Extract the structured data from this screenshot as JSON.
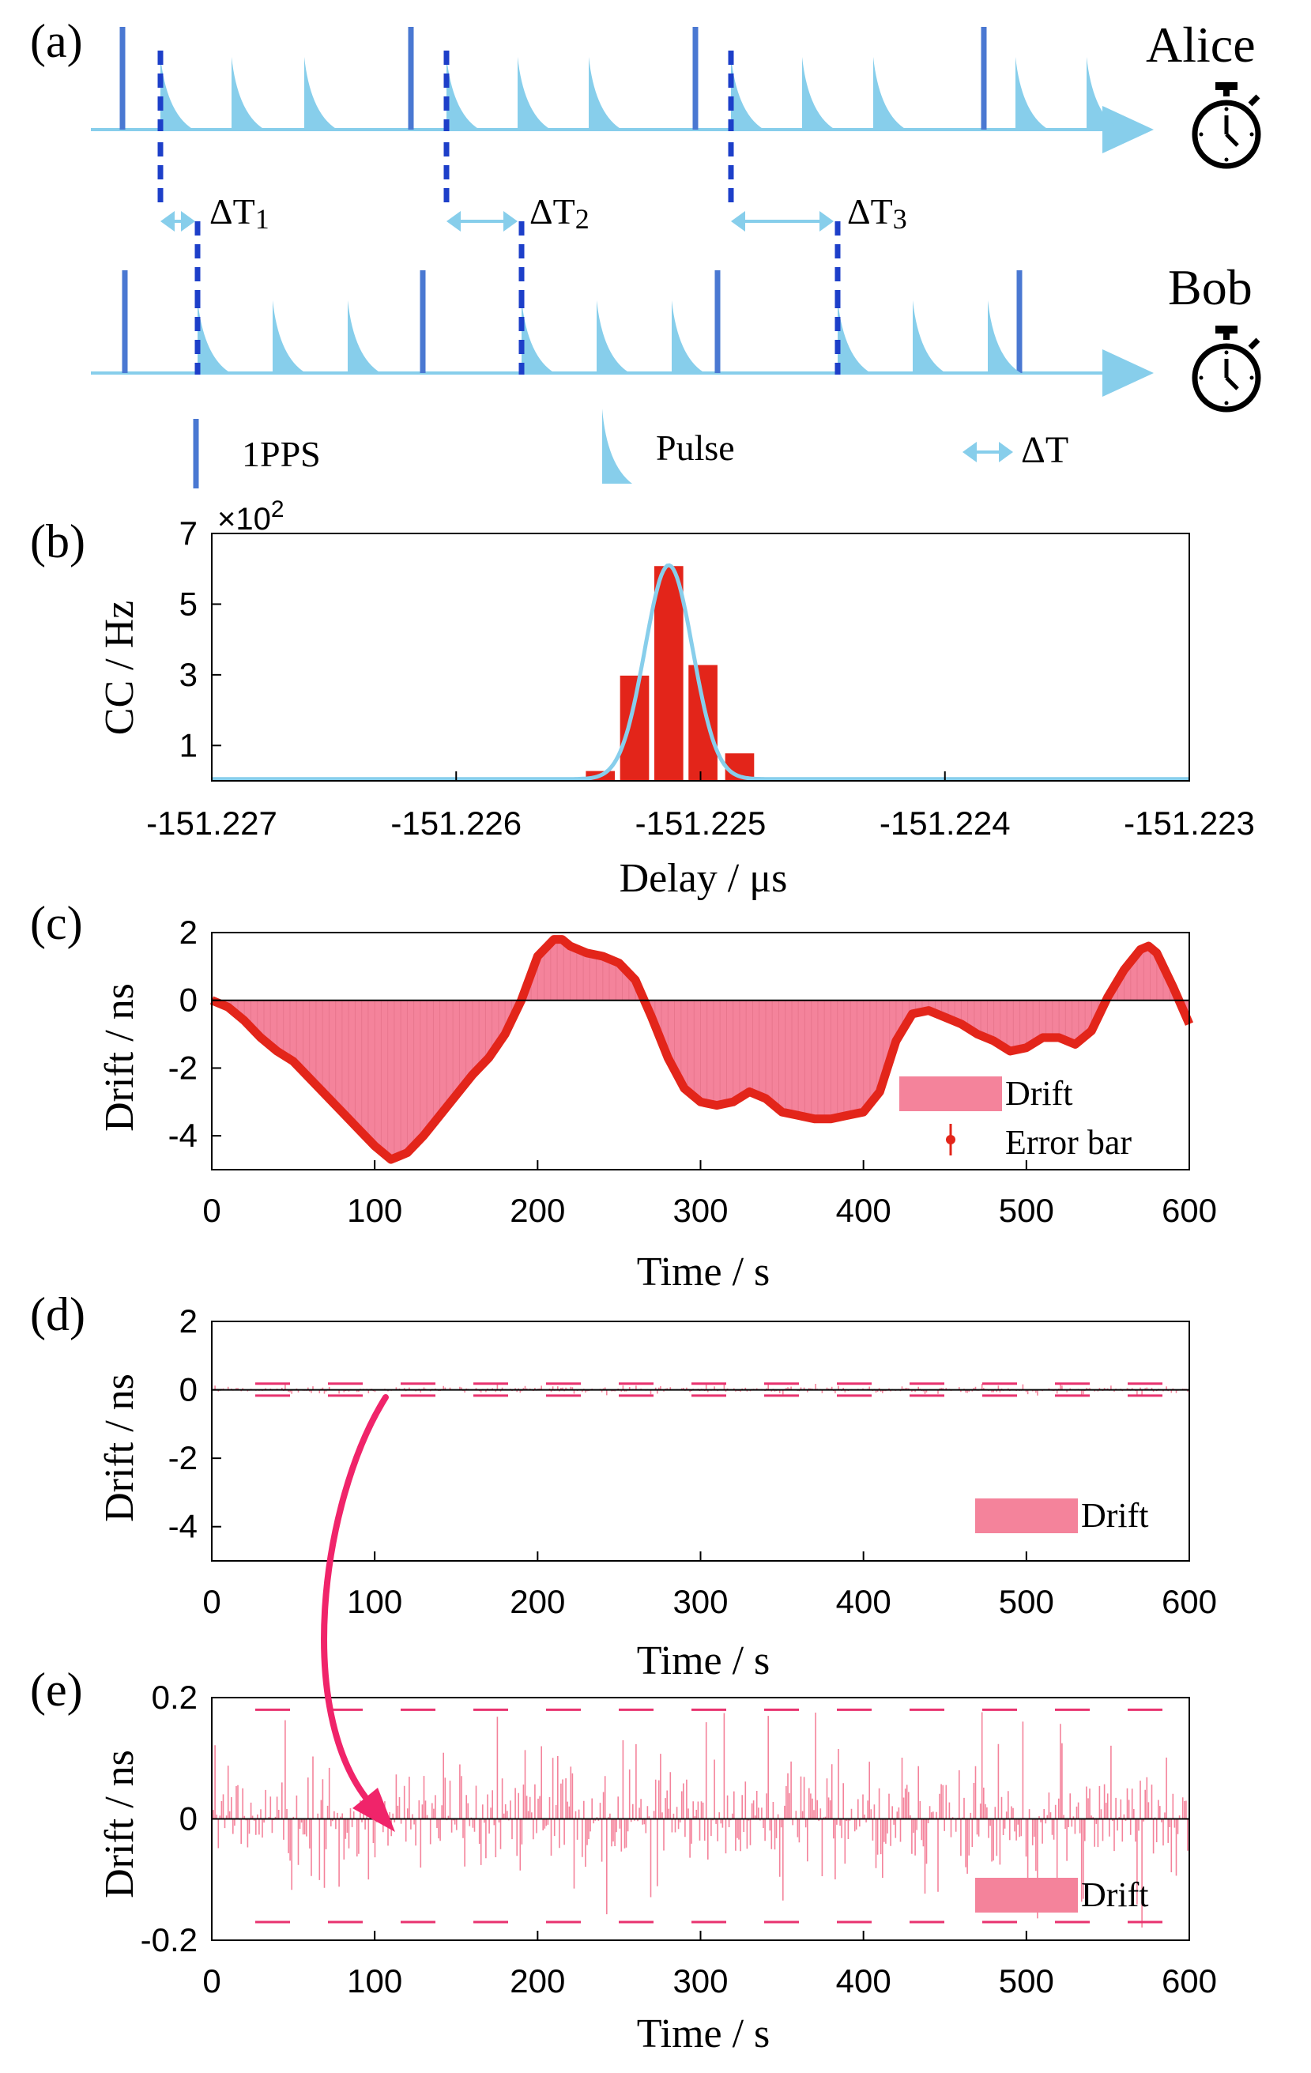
{
  "panel_a": {
    "label": "(a)",
    "alice_label": "Alice",
    "bob_label": "Bob",
    "delta_labels": [
      {
        "base": "ΔT",
        "sub": "1"
      },
      {
        "base": "ΔT",
        "sub": "2"
      },
      {
        "base": "ΔT",
        "sub": "3"
      }
    ],
    "legend": {
      "pps": "1PPS",
      "pulse": "Pulse",
      "delta": "ΔT"
    },
    "colors": {
      "arrow": "#87ceeb",
      "pulse": "#87ceeb",
      "pps": "#4a78d2",
      "dash": "#1d3fc9"
    },
    "icons": [
      "stopwatch-icon",
      "stopwatch-icon"
    ]
  },
  "chart_data": [
    {
      "panel": "(b)",
      "type": "bar",
      "ylabel": "CC / Hz",
      "xlabel": "Delay / μs",
      "y_multiplier": "×10",
      "y_multiplier_exp": "2",
      "xlim": [
        -151.227,
        -151.223
      ],
      "ylim": [
        0,
        7
      ],
      "xticks": [
        -151.227,
        -151.226,
        -151.225,
        -151.224,
        -151.223
      ],
      "xtick_labels": [
        "-151.227",
        "-151.226",
        "-151.225",
        "-151.224",
        "-151.223"
      ],
      "yticks": [
        1,
        3,
        5,
        7
      ],
      "ytick_labels": [
        "1",
        "3",
        "5",
        "7"
      ],
      "bar_color": "#e3251a",
      "fit_color": "#87ceeb",
      "bar_width": 0.000125,
      "bars": [
        {
          "x": -151.22541,
          "y": 0.3
        },
        {
          "x": -151.22527,
          "y": 3.0
        },
        {
          "x": -151.22513,
          "y": 6.1
        },
        {
          "x": -151.22499,
          "y": 3.3
        },
        {
          "x": -151.22484,
          "y": 0.8
        }
      ],
      "fit": {
        "type": "gaussian",
        "center": -151.22513,
        "sigma": 9.8e-05,
        "amplitude": 6.1,
        "baseline": 0.05
      }
    },
    {
      "panel": "(c)",
      "type": "area",
      "ylabel": "Drift / ns",
      "xlabel": "Time / s",
      "xlim": [
        0,
        600
      ],
      "ylim": [
        -5,
        2
      ],
      "xticks": [
        0,
        100,
        200,
        300,
        400,
        500,
        600
      ],
      "yticks": [
        -4,
        -2,
        0,
        2
      ],
      "ytick_labels": [
        "-4",
        "-2",
        "0",
        "2"
      ],
      "fill_color": "#f4839b",
      "line_color": "#e3251a",
      "legend": {
        "fill": "Drift",
        "errorbar": "Error bar",
        "position": "lower-right"
      },
      "series": [
        {
          "name": "Drift",
          "x": [
            0,
            10,
            20,
            30,
            40,
            50,
            60,
            70,
            80,
            90,
            100,
            110,
            120,
            130,
            140,
            150,
            160,
            170,
            180,
            190,
            200,
            210,
            215,
            220,
            230,
            240,
            250,
            260,
            270,
            280,
            290,
            300,
            310,
            320,
            330,
            340,
            350,
            360,
            370,
            380,
            390,
            400,
            410,
            420,
            430,
            440,
            450,
            460,
            470,
            480,
            490,
            500,
            510,
            520,
            530,
            540,
            550,
            560,
            570,
            575,
            580,
            590,
            600
          ],
          "y": [
            0,
            -0.2,
            -0.6,
            -1.1,
            -1.5,
            -1.8,
            -2.3,
            -2.8,
            -3.3,
            -3.8,
            -4.3,
            -4.7,
            -4.5,
            -4.0,
            -3.4,
            -2.8,
            -2.2,
            -1.7,
            -1.0,
            0.0,
            1.3,
            1.8,
            1.8,
            1.6,
            1.4,
            1.3,
            1.1,
            0.6,
            -0.5,
            -1.7,
            -2.6,
            -3.0,
            -3.1,
            -3.0,
            -2.7,
            -2.9,
            -3.3,
            -3.4,
            -3.5,
            -3.5,
            -3.4,
            -3.3,
            -2.7,
            -1.2,
            -0.4,
            -0.3,
            -0.5,
            -0.7,
            -1.0,
            -1.2,
            -1.5,
            -1.4,
            -1.1,
            -1.1,
            -1.3,
            -0.9,
            0.1,
            0.9,
            1.5,
            1.6,
            1.4,
            0.4,
            -0.7
          ]
        }
      ]
    },
    {
      "panel": "(d)",
      "type": "area",
      "ylabel": "Drift / ns",
      "xlabel": "Time / s",
      "xlim": [
        0,
        600
      ],
      "ylim": [
        -5,
        2
      ],
      "xticks": [
        0,
        100,
        200,
        300,
        400,
        500,
        600
      ],
      "yticks": [
        -4,
        -2,
        0,
        2
      ],
      "ytick_labels": [
        "-4",
        "-2",
        "0",
        "2"
      ],
      "fill_color": "#f4839b",
      "threshold_lines": [
        0.18,
        -0.17
      ],
      "threshold_color": "#e8336f",
      "legend": {
        "fill": "Drift",
        "position": "lower-right"
      },
      "noise": {
        "seed": 7,
        "mean": 0,
        "std": 0.05,
        "max_abs": 0.18,
        "samples": 600
      }
    },
    {
      "panel": "(e)",
      "type": "area",
      "ylabel": "Drift / ns",
      "xlabel": "Time / s",
      "xlim": [
        0,
        600
      ],
      "ylim": [
        -0.2,
        0.2
      ],
      "xticks": [
        0,
        100,
        200,
        300,
        400,
        500,
        600
      ],
      "yticks": [
        -0.2,
        0,
        0.2
      ],
      "ytick_labels": [
        "-0.2",
        "0",
        "0.2"
      ],
      "fill_color": "#f4839b",
      "threshold_lines": [
        0.18,
        -0.17
      ],
      "threshold_color": "#e8336f",
      "legend": {
        "fill": "Drift",
        "position": "lower-right"
      },
      "noise": {
        "seed": 7,
        "mean": 0,
        "std": 0.05,
        "max_abs": 0.18,
        "samples": 600
      }
    }
  ],
  "arrow_color": "#f0246a"
}
